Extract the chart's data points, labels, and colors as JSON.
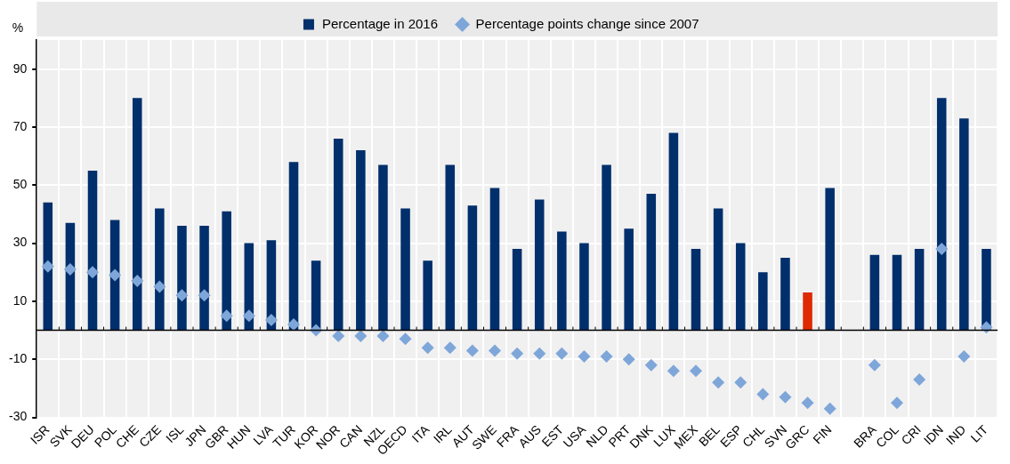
{
  "chart_data": {
    "type": "bar",
    "ylabel": "%",
    "categories": [
      "ISR",
      "SVK",
      "DEU",
      "POL",
      "CHE",
      "CZE",
      "ISL",
      "JPN",
      "GBR",
      "HUN",
      "LVA",
      "TUR",
      "KOR",
      "NOR",
      "CAN",
      "NZL",
      "OECD",
      "ITA",
      "IRL",
      "AUT",
      "SWE",
      "FRA",
      "AUS",
      "EST",
      "USA",
      "NLD",
      "PRT",
      "DNK",
      "LUX",
      "MEX",
      "BEL",
      "ESP",
      "CHL",
      "SVN",
      "GRC",
      "FIN",
      null,
      "BRA",
      "COL",
      "CRI",
      "IDN",
      "IND",
      "LIT"
    ],
    "series": [
      {
        "name": "Percentage in 2016",
        "color": "#002f6c",
        "colors": [
          "#002f6c",
          "#002f6c",
          "#002f6c",
          "#002f6c",
          "#002f6c",
          "#002f6c",
          "#002f6c",
          "#002f6c",
          "#002f6c",
          "#002f6c",
          "#002f6c",
          "#002f6c",
          "#002f6c",
          "#002f6c",
          "#002f6c",
          "#002f6c",
          "#002f6c",
          "#002f6c",
          "#002f6c",
          "#002f6c",
          "#002f6c",
          "#002f6c",
          "#002f6c",
          "#002f6c",
          "#002f6c",
          "#002f6c",
          "#002f6c",
          "#002f6c",
          "#002f6c",
          "#002f6c",
          "#002f6c",
          "#002f6c",
          "#002f6c",
          "#002f6c",
          "#dd2a00",
          "#002f6c",
          "#002f6c",
          "#002f6c",
          "#002f6c",
          "#002f6c",
          "#002f6c",
          "#002f6c",
          "#002f6c"
        ],
        "values": [
          44,
          37,
          55,
          38,
          80,
          42,
          36,
          36,
          41,
          30,
          31,
          58,
          24,
          66,
          62,
          57,
          42,
          24,
          57,
          43,
          49,
          28,
          45,
          34,
          30,
          57,
          35,
          47,
          68,
          28,
          42,
          30,
          20,
          25,
          13,
          49,
          null,
          26,
          26,
          28,
          80,
          73,
          28
        ]
      },
      {
        "name": "Percentage points change since 2007",
        "type": "scatter",
        "color": "#7ea6d9",
        "values": [
          22,
          21,
          20,
          19,
          17,
          15,
          12,
          12,
          5,
          5,
          3.5,
          2,
          0,
          -2,
          -2,
          -2,
          -3,
          -6,
          -6,
          -7,
          -7,
          -8,
          -8,
          -8,
          -9,
          -9,
          -10,
          -12,
          -14,
          -14,
          -18,
          -18,
          -22,
          -23,
          -25,
          -27,
          null,
          -12,
          -25,
          -17,
          28,
          -9,
          1
        ]
      }
    ],
    "ylim": [
      -30,
      100
    ],
    "yticks": [
      -30,
      -10,
      10,
      30,
      50,
      70,
      90
    ],
    "grid": true,
    "legend": "top",
    "marker": "diamond"
  }
}
